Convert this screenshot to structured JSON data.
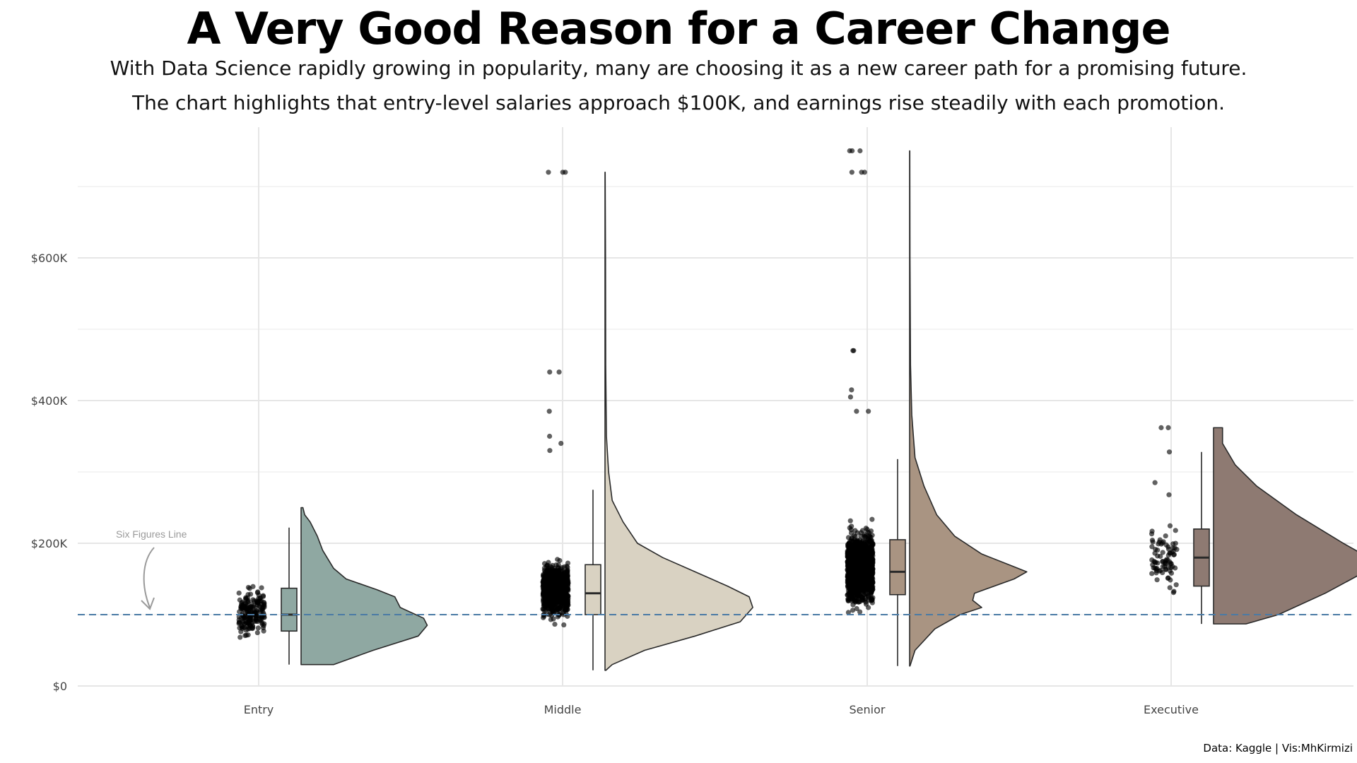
{
  "title": "A Very Good Reason for a Career Change",
  "subtitle_line1": "With Data Science rapidly growing in popularity, many are choosing it as a new career path for a promising future.",
  "subtitle_line2": "The chart highlights that entry-level salaries approach $100K, and earnings rise steadily with each promotion.",
  "caption": "Data: Kaggle | Vis:MhKirmizi",
  "annotation": "Six Figures Line",
  "chart_data": {
    "type": "raincloud",
    "title": "A Very Good Reason for a Career Change",
    "xlabel": "",
    "ylabel": "",
    "categories": [
      "Entry",
      "Middle",
      "Senior",
      "Executive"
    ],
    "y_ticks": [
      0,
      200000,
      400000,
      600000
    ],
    "y_tick_labels": [
      "$0",
      "$200K",
      "$400K",
      "$600K"
    ],
    "ylim": [
      0,
      700000
    ],
    "grid": true,
    "reference_line": {
      "value": 100000,
      "label": "Six Figures Line",
      "color": "#4a7aa5"
    },
    "series": [
      {
        "category": "Entry",
        "color": "#8fa8a2",
        "box": {
          "min": 30000,
          "q1": 77000,
          "median": 100000,
          "q3": 137000,
          "max": 222000
        },
        "density": {
          "min": 30000,
          "max": 250000,
          "mode": 85000
        },
        "points_range": [
          30000,
          250000
        ],
        "n_points": 190
      },
      {
        "category": "Middle",
        "color": "#d9d2c2",
        "box": {
          "min": 22000,
          "q1": 100000,
          "median": 130000,
          "q3": 170000,
          "max": 275000
        },
        "density": {
          "min": 22000,
          "max": 720000,
          "mode": 120000
        },
        "points_range": [
          22000,
          720000
        ],
        "n_points": 900
      },
      {
        "category": "Senior",
        "color": "#a99482",
        "box": {
          "min": 28000,
          "q1": 128000,
          "median": 160000,
          "q3": 205000,
          "max": 318000
        },
        "density": {
          "min": 28000,
          "max": 750000,
          "mode": 160000
        },
        "points_range": [
          28000,
          750000
        ],
        "n_points": 1700
      },
      {
        "category": "Executive",
        "color": "#8e7a72",
        "box": {
          "min": 87000,
          "q1": 140000,
          "median": 180000,
          "q3": 220000,
          "max": 328000
        },
        "density": {
          "min": 87000,
          "max": 362000,
          "mode": 180000
        },
        "points_range": [
          87000,
          362000
        ],
        "n_points": 80
      }
    ]
  }
}
